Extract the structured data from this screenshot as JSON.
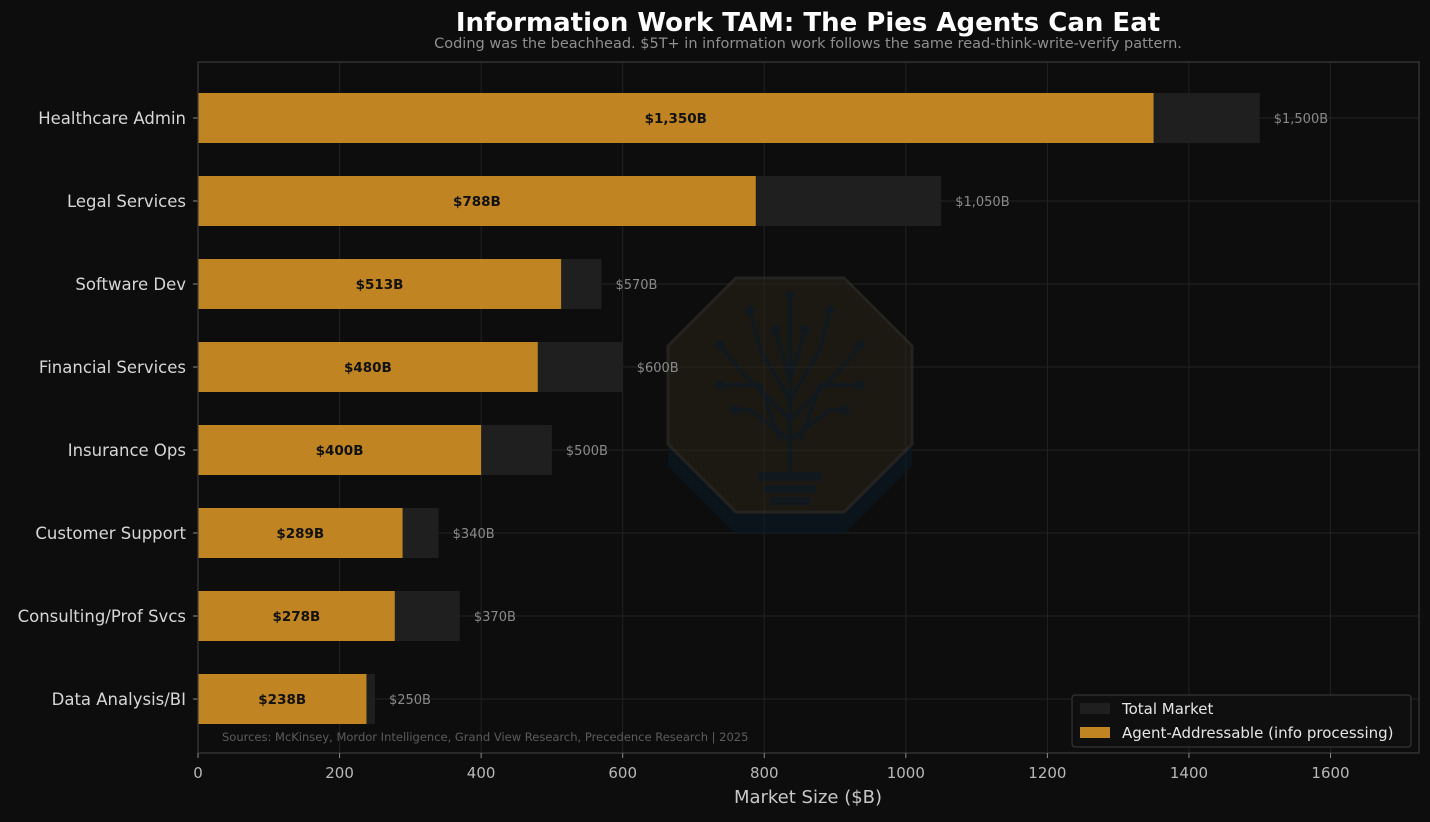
{
  "chart_data": {
    "type": "bar",
    "orientation": "horizontal",
    "title": "Information Work TAM: The Pies Agents Can Eat",
    "subtitle": "Coding was the beachhead. $5T+ in information work follows the same read-think-write-verify pattern.",
    "xlabel": "Market Size ($B)",
    "ylabel": "",
    "xlim": [
      0,
      1725
    ],
    "xticks": [
      0,
      200,
      400,
      600,
      800,
      1000,
      1200,
      1400,
      1600
    ],
    "grid": true,
    "legend_position": "bottom-right",
    "categories": [
      "Healthcare Admin",
      "Legal Services",
      "Software Dev",
      "Financial Services",
      "Insurance Ops",
      "Customer Support",
      "Consulting/Prof Svcs",
      "Data Analysis/BI"
    ],
    "series": [
      {
        "name": "Total Market",
        "values": [
          1500,
          1050,
          570,
          600,
          500,
          340,
          370,
          250
        ],
        "labels": [
          "$1,500B",
          "$1,050B",
          "$570B",
          "$600B",
          "$500B",
          "$340B",
          "$370B",
          "$250B"
        ],
        "color": "#1f1f1f"
      },
      {
        "name": "Agent-Addressable (info processing)",
        "values": [
          1350,
          788,
          513,
          480,
          400,
          289,
          278,
          238
        ],
        "labels": [
          "$1,350B",
          "$788B",
          "$513B",
          "$480B",
          "$400B",
          "$289B",
          "$278B",
          "$238B"
        ],
        "color": "#c08423"
      }
    ],
    "source_note": "Sources: McKinsey, Mordor Intelligence, Grand View Research, Precedence Research | 2025"
  },
  "colors": {
    "background": "#0d0d0d",
    "title": "#ffffff",
    "subtitle": "#8f8f8f",
    "axis_text": "#b8b8b8",
    "category_text": "#d6d6d6",
    "total_label": "#8a8a8a",
    "inner_label": "#111111",
    "grid": "#222222",
    "spine": "#3a3a3a",
    "source_text": "#5c5c5c"
  },
  "watermark": {
    "icon": "tree-circuit-lightbulb-icon"
  }
}
